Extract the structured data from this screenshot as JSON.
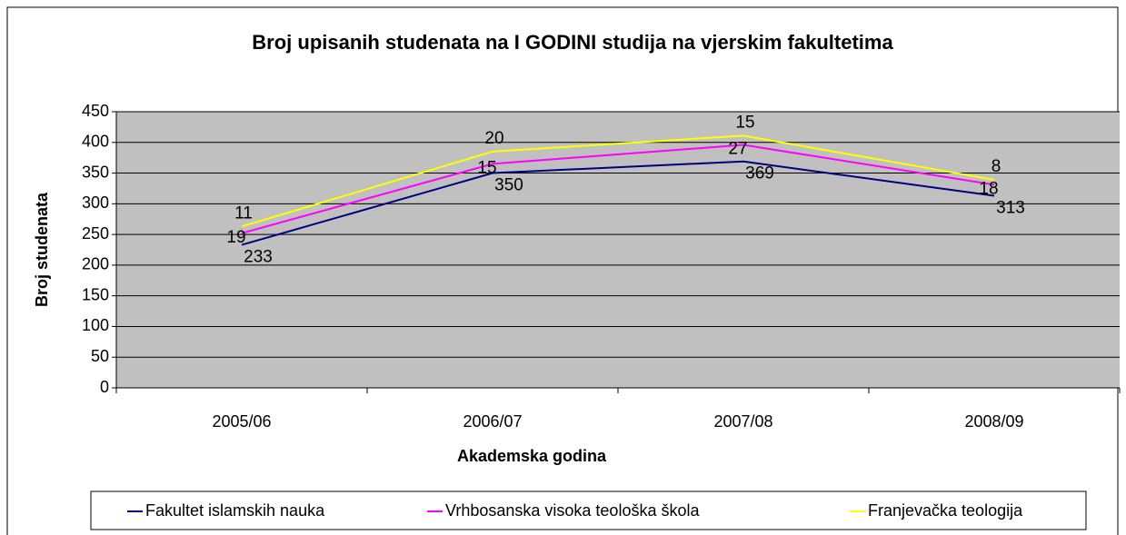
{
  "chart_data": {
    "type": "line",
    "stacked": true,
    "title": "Broj upisanih studenata na I GODINI studija na vjerskim fakultetima",
    "x_label": "Akademska godina",
    "y_label": "Broj studenata",
    "categories": [
      "2005/06",
      "2006/07",
      "2007/08",
      "2008/09"
    ],
    "series": [
      {
        "name": "Fakultet islamskih nauka",
        "color": "#000080",
        "values": [
          233,
          350,
          369,
          313
        ]
      },
      {
        "name": "Vrhbosanska visoka teološka škola",
        "color": "#ff00ff",
        "values": [
          19,
          15,
          27,
          18
        ]
      },
      {
        "name": "Franjevačka teologija",
        "color": "#ffff00",
        "values": [
          11,
          20,
          15,
          8
        ]
      }
    ],
    "ylim": [
      0,
      450
    ],
    "yticks": [
      0,
      50,
      100,
      150,
      200,
      250,
      300,
      350,
      400,
      450
    ],
    "grid": true,
    "legend": "bottom"
  }
}
